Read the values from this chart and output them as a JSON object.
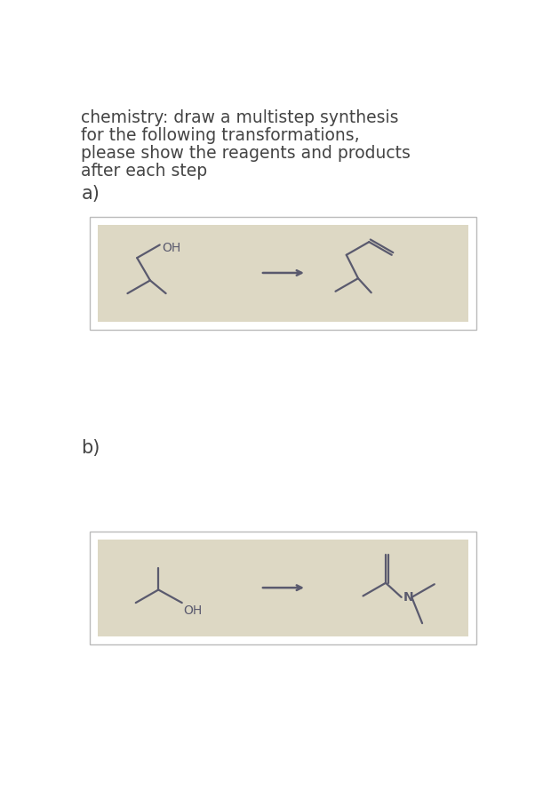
{
  "title_lines": [
    "chemistry: draw a multistep synthesis",
    "for the following transformations,",
    "please show the reagents and products",
    "after each step"
  ],
  "label_a": "a)",
  "label_b": "b)",
  "bg_color": "#ffffff",
  "box_bg": "#ddd8c4",
  "box_edge": "#bbbbbb",
  "mol_color": "#5a5a6e",
  "title_color": "#444444",
  "title_fontsize": 13.5,
  "label_fontsize": 15
}
